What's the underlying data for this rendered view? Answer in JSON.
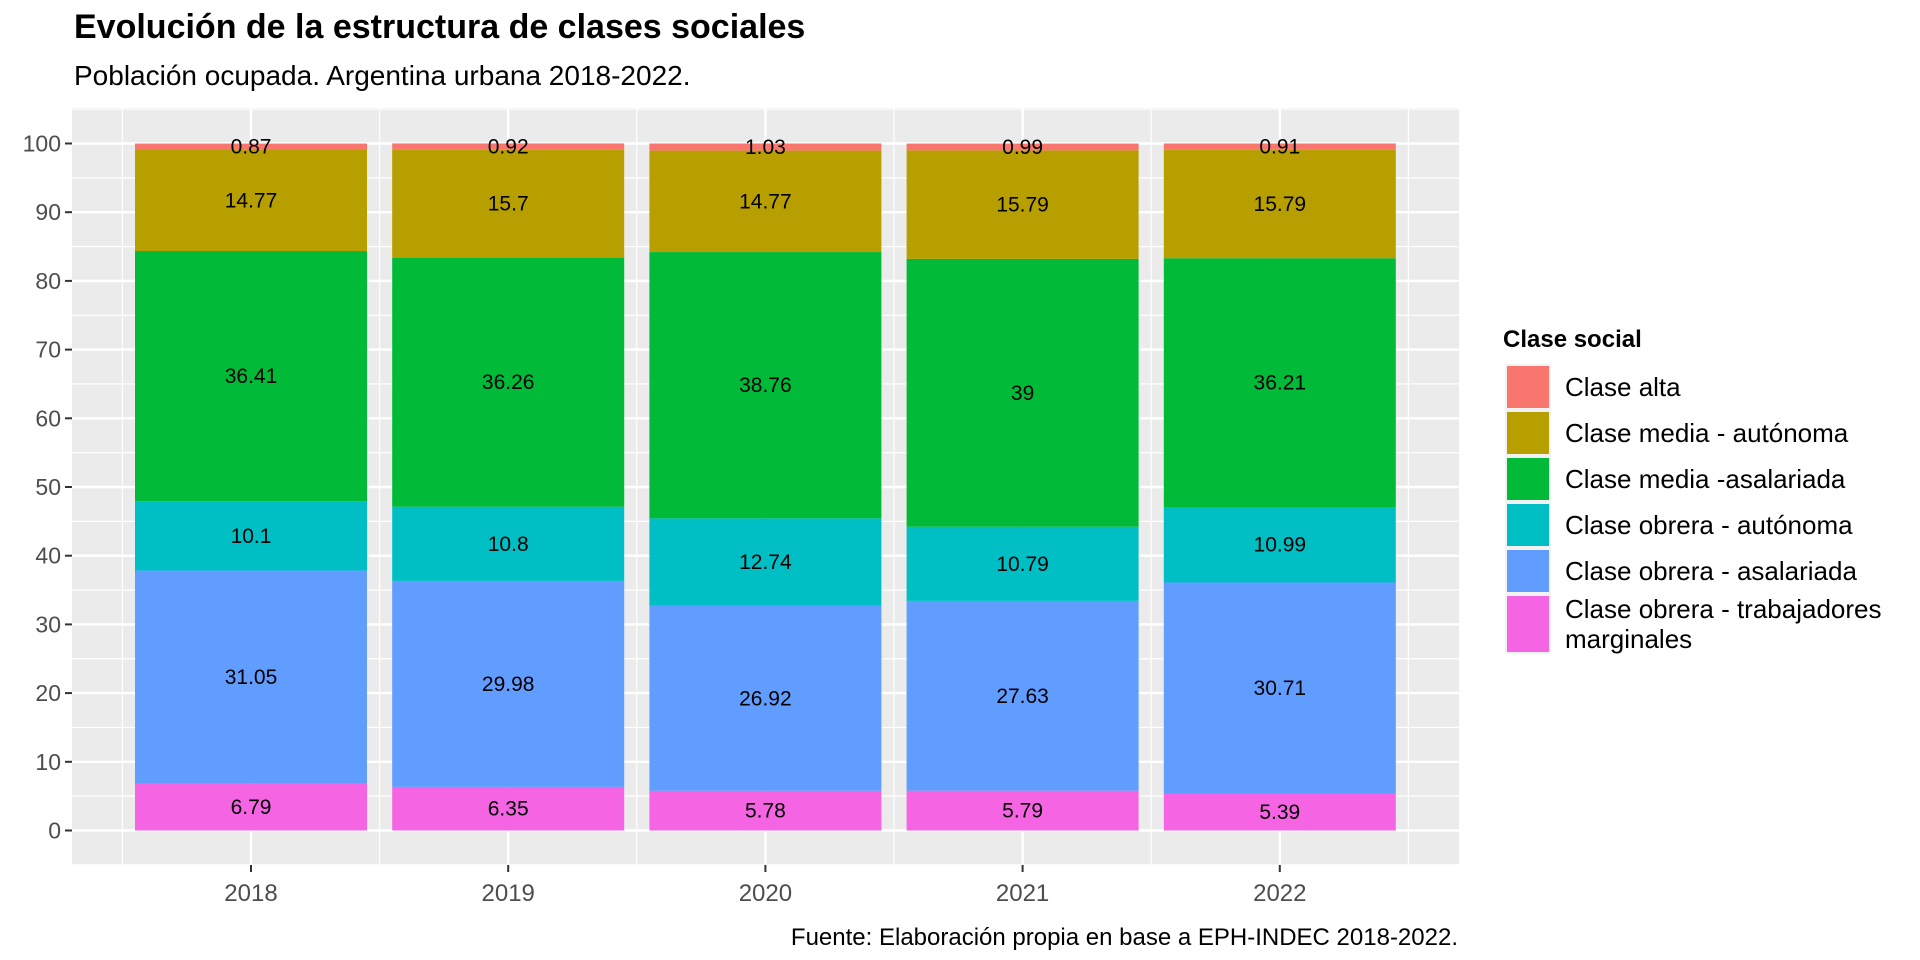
{
  "title": "Evolución de la estructura de clases sociales",
  "subtitle": "Población ocupada. Argentina urbana 2018-2022.",
  "caption": "Fuente: Elaboración propia en base a EPH-INDEC 2018-2022.",
  "legend": {
    "title": "Clase social",
    "items": [
      {
        "label": "Clase alta",
        "color": "#F8766D"
      },
      {
        "label": "Clase media - autónoma",
        "color": "#B79F00"
      },
      {
        "label": "Clase media -asalariada",
        "color": "#00BA38"
      },
      {
        "label": "Clase obrera - autónoma",
        "color": "#00BFC4"
      },
      {
        "label": "Clase obrera - asalariada",
        "color": "#619CFF"
      },
      {
        "label": "Clase obrera - trabajadores marginales",
        "color": "#F564E3"
      }
    ]
  },
  "chart_data": {
    "type": "bar",
    "stacked": true,
    "title": "Evolución de la estructura de clases sociales",
    "subtitle": "Población ocupada. Argentina urbana 2018-2022.",
    "caption": "Fuente: Elaboración propia en base a EPH-INDEC 2018-2022.",
    "xlabel": "",
    "ylabel": "",
    "categories": [
      "2018",
      "2019",
      "2020",
      "2021",
      "2022"
    ],
    "ylim": [
      0,
      100
    ],
    "yticks": [
      0,
      10,
      20,
      30,
      40,
      50,
      60,
      70,
      80,
      90,
      100
    ],
    "grid": true,
    "legend_position": "right",
    "legend_title": "Clase social",
    "stack_order_bottom_to_top": [
      "Clase obrera - trabajadores marginales",
      "Clase obrera - asalariada",
      "Clase obrera - autónoma",
      "Clase media -asalariada",
      "Clase media - autónoma",
      "Clase alta"
    ],
    "series": [
      {
        "name": "Clase alta",
        "color": "#F8766D",
        "values": [
          0.87,
          0.92,
          1.03,
          0.99,
          0.91
        ],
        "labels": [
          "0.87",
          "0.92",
          "1.03",
          "0.99",
          "0.91"
        ]
      },
      {
        "name": "Clase media - autónoma",
        "color": "#B79F00",
        "values": [
          14.77,
          15.7,
          14.77,
          15.79,
          15.79
        ],
        "labels": [
          "14.77",
          "15.7",
          "14.77",
          "15.79",
          "15.79"
        ]
      },
      {
        "name": "Clase media -asalariada",
        "color": "#00BA38",
        "values": [
          36.41,
          36.26,
          38.76,
          39,
          36.21
        ],
        "labels": [
          "36.41",
          "36.26",
          "38.76",
          "39",
          "36.21"
        ]
      },
      {
        "name": "Clase obrera - autónoma",
        "color": "#00BFC4",
        "values": [
          10.1,
          10.8,
          12.74,
          10.79,
          10.99
        ],
        "labels": [
          "10.1",
          "10.8",
          "12.74",
          "10.79",
          "10.99"
        ]
      },
      {
        "name": "Clase obrera - asalariada",
        "color": "#619CFF",
        "values": [
          31.05,
          29.98,
          26.92,
          27.63,
          30.71
        ],
        "labels": [
          "31.05",
          "29.98",
          "26.92",
          "27.63",
          "30.71"
        ]
      },
      {
        "name": "Clase obrera - trabajadores marginales",
        "color": "#F564E3",
        "values": [
          6.79,
          6.35,
          5.78,
          5.79,
          5.39
        ],
        "labels": [
          "6.79",
          "6.35",
          "5.78",
          "5.79",
          "5.39"
        ]
      }
    ]
  }
}
